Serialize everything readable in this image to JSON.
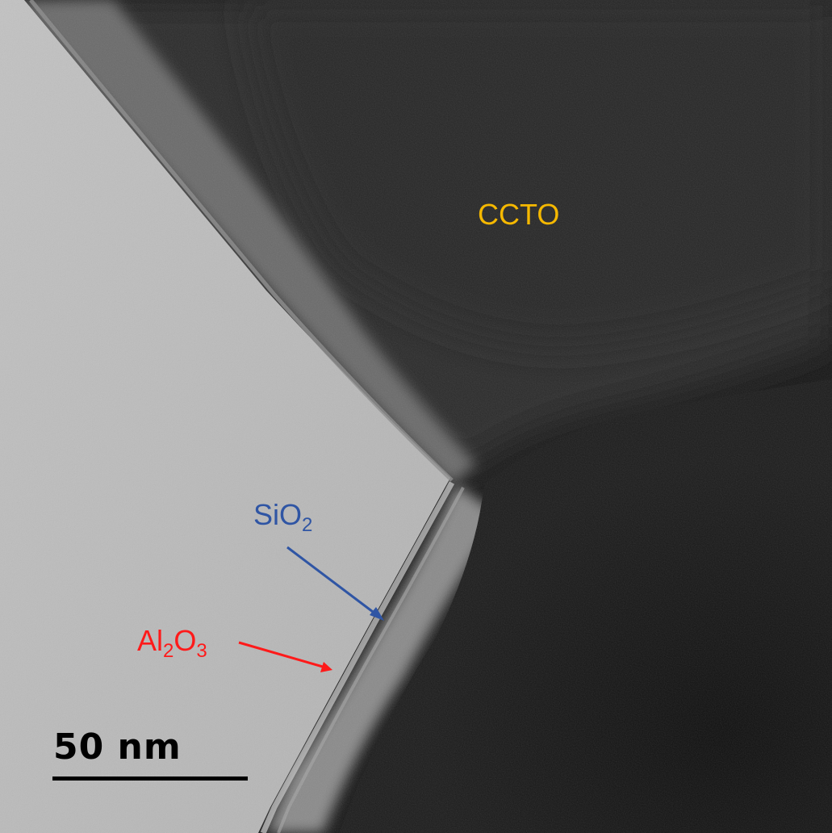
{
  "labels": {
    "ccto": "CCTO",
    "sio2_base": "SiO",
    "sio2_sub": "2",
    "al2o3_part1": "Al",
    "al2o3_sub1": "2",
    "al2o3_part2": "O",
    "al2o3_sub2": "3"
  },
  "scale_bar": {
    "text": "50 nm"
  },
  "colors": {
    "ccto_label": "#f5b800",
    "sio2_label": "#2f55a4",
    "al2o3_label": "#ff1a1a",
    "background_light": "#b9b9b9",
    "particle_dark": "#1c1c1c"
  }
}
